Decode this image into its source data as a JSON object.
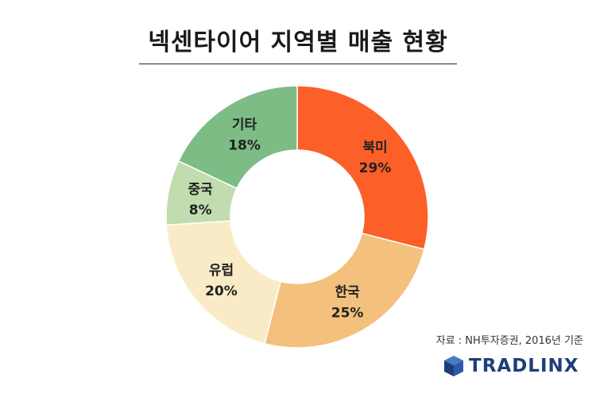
{
  "title": "넥센타이어 지역별 매출 현황",
  "source": "자료 : NH투자증권, 2016년 기준",
  "logo": {
    "text": "TRADLINX"
  },
  "colors": {
    "north_america": "#fd5f28",
    "korea": "#f3c07d",
    "europe": "#faebc7",
    "china": "#c1ddb0",
    "other": "#7dbc85"
  },
  "chart_data": {
    "type": "pie",
    "variant": "donut",
    "title": "넥센타이어 지역별 매출 현황",
    "start": "12 o'clock, clockwise",
    "slices": [
      {
        "label": "북미",
        "value": 29,
        "value_label": "29%",
        "color": "#fd5f28"
      },
      {
        "label": "한국",
        "value": 25,
        "value_label": "25%",
        "color": "#f3c07d"
      },
      {
        "label": "유럽",
        "value": 20,
        "value_label": "20%",
        "color": "#faebc7"
      },
      {
        "label": "중국",
        "value": 8,
        "value_label": "8%",
        "color": "#c1ddb0"
      },
      {
        "label": "기타",
        "value": 18,
        "value_label": "18%",
        "color": "#7dbc85"
      }
    ]
  }
}
